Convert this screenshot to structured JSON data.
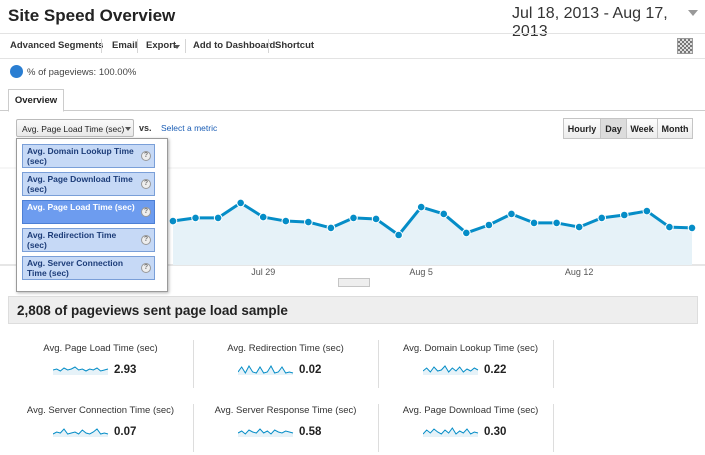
{
  "header": {
    "title": "Site Speed Overview",
    "date_range": "Jul 18, 2013 - Aug 17, 2013"
  },
  "toolbar": {
    "items": [
      "Advanced Segments",
      "Email",
      "Export",
      "Add to Dashboard",
      "Shortcut"
    ]
  },
  "segment": {
    "label": "% of pageviews: 100.00%"
  },
  "tabs": [
    "Overview"
  ],
  "metric_selector": {
    "selected": "Avg. Page Load Time (sec)",
    "vs": "vs.",
    "link": "Select a metric"
  },
  "granularity": [
    "Hourly",
    "Day",
    "Week",
    "Month"
  ],
  "dropdown": {
    "items": [
      "Avg. Domain Lookup Time (sec)",
      "Avg. Page Download Time (sec)",
      "Avg. Page Load Time (sec)",
      "Avg. Redirection Time (sec)",
      "Avg. Server Connection Time (sec)"
    ]
  },
  "chart_data": {
    "type": "line",
    "color": "#058dc7",
    "categories": [
      null,
      null,
      null,
      null,
      null,
      null,
      null,
      null,
      null,
      null,
      null,
      "Jul 29",
      null,
      null,
      null,
      null,
      null,
      null,
      "Aug 5",
      null,
      null,
      null,
      null,
      null,
      null,
      "Aug 12",
      null,
      null,
      null,
      null,
      null
    ],
    "values": [
      null,
      null,
      null,
      null,
      null,
      null,
      null,
      2.11,
      2.26,
      2.26,
      2.98,
      2.3,
      2.11,
      2.06,
      1.78,
      2.26,
      2.21,
      1.44,
      2.78,
      2.45,
      1.54,
      1.92,
      2.45,
      2.02,
      2.02,
      1.82,
      2.26,
      2.4,
      2.59,
      1.82,
      1.78
    ],
    "ylim": [
      0,
      6
    ]
  },
  "summary": "2,808 of pageviews sent page load sample",
  "metrics": [
    {
      "name": "Avg. Page Load Time (sec)",
      "value": "2.93"
    },
    {
      "name": "Avg. Redirection Time (sec)",
      "value": "0.02"
    },
    {
      "name": "Avg. Domain Lookup Time (sec)",
      "value": "0.22"
    },
    {
      "name": "Avg. Server Connection Time (sec)",
      "value": "0.07"
    },
    {
      "name": "Avg. Server Response Time (sec)",
      "value": "0.58"
    },
    {
      "name": "Avg. Page Download Time (sec)",
      "value": "0.30"
    }
  ]
}
